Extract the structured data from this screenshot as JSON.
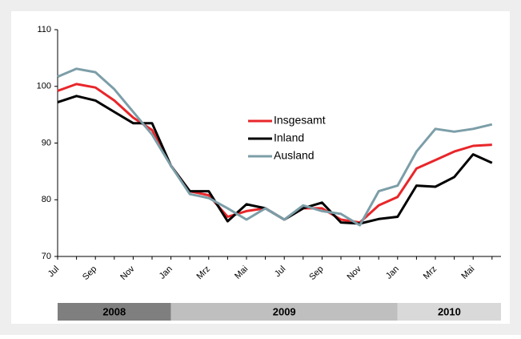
{
  "chart_data": {
    "type": "line",
    "categories": [
      "Jul",
      null,
      "Sep",
      null,
      "Nov",
      null,
      "Jan",
      null,
      "Mrz",
      null,
      "Mai",
      null,
      "Jul",
      null,
      "Sep",
      null,
      "Nov",
      null,
      "Jan",
      null,
      "Mrz",
      null,
      "Mai",
      null
    ],
    "series": [
      {
        "name": "Insgesamt",
        "color": "#e8262a",
        "values": [
          99.2,
          100.4,
          99.8,
          97.5,
          94.5,
          92.3,
          86,
          81.5,
          80.8,
          77,
          78,
          78.5,
          76.5,
          78.5,
          78.5,
          76.5,
          76,
          79,
          80.5,
          85.5,
          87,
          88.5,
          89.5,
          89.7
        ]
      },
      {
        "name": "Inland",
        "color": "#000000",
        "values": [
          97.2,
          98.3,
          97.5,
          95.5,
          93.5,
          93.5,
          86,
          81.5,
          81.5,
          76.2,
          79.2,
          78.5,
          76.5,
          78.5,
          79.5,
          76,
          75.8,
          76.6,
          77,
          82.5,
          82.3,
          84,
          88,
          86.5
        ]
      },
      {
        "name": "Ausland",
        "color": "#7c9ea8",
        "values": [
          101.7,
          103.1,
          102.5,
          99.5,
          95.5,
          91.5,
          86,
          81,
          80.3,
          78.5,
          76.5,
          78.5,
          76.5,
          79,
          78,
          77.5,
          75.5,
          81.5,
          82.5,
          88.5,
          92.5,
          92,
          92.5,
          93.3
        ]
      }
    ],
    "ylim": [
      70,
      110
    ],
    "yticks": [
      70,
      80,
      90,
      100,
      110
    ],
    "year_bands": [
      {
        "label": "2008",
        "color": "#7f7f7f"
      },
      {
        "label": "2009",
        "color": "#bfbfbf"
      },
      {
        "label": "2010",
        "color": "#d9d9d9"
      }
    ]
  }
}
